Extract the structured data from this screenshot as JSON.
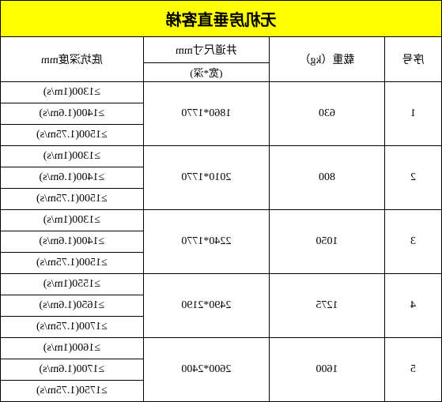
{
  "title": "无机房垂直客梯",
  "headers": {
    "col1": "序号",
    "col2": "载重（kg）",
    "col3_main": "井道尺寸mm",
    "col3_sub": "(宽*深)",
    "col4": "底坑深度mm"
  },
  "rows": [
    {
      "seq": "1",
      "load": "630",
      "shaft": "1860*1770",
      "depths": [
        "≥1300(1m/s)",
        "≥1400(1.6m/s)",
        "≥1500(1.75m/s)"
      ]
    },
    {
      "seq": "2",
      "load": "800",
      "shaft": "2010*1770",
      "depths": [
        "≥1300(1m/s)",
        "≥1400(1.6m/s)",
        "≥1500(1.75m/s)"
      ]
    },
    {
      "seq": "3",
      "load": "1050",
      "shaft": "2240*1770",
      "depths": [
        "≥1300(1m/s)",
        "≥1400(1.6m/s)",
        "≥1500(1.75m/s)"
      ]
    },
    {
      "seq": "4",
      "load": "1275",
      "shaft": "2490*2190",
      "depths": [
        "≥1550(1m/s)",
        "≥1650(1.6m/s)",
        "≥1700(1.75m/s)"
      ]
    },
    {
      "seq": "5",
      "load": "1600",
      "shaft": "2600*2400",
      "depths": [
        "≥1600(1m/s)",
        "≥1700(1.6m/s)",
        "≥1750(1.75m/s)"
      ]
    }
  ]
}
